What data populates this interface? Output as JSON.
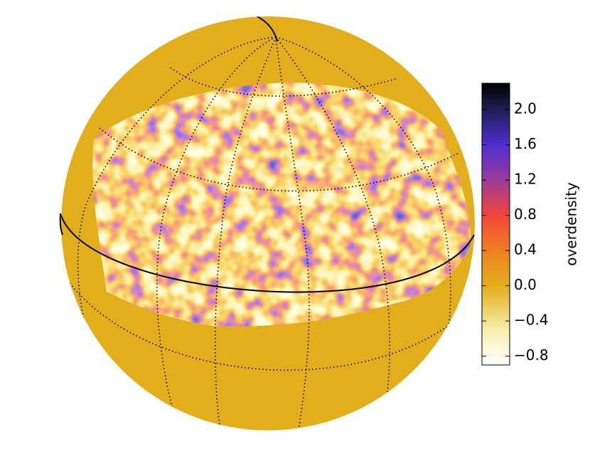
{
  "colorbar": {
    "label": "overdensity",
    "clim": [
      -0.9,
      2.3
    ],
    "ticks": [
      {
        "value": -0.8,
        "label": "−0.8"
      },
      {
        "value": -0.4,
        "label": "−0.4"
      },
      {
        "value": 0,
        "label": "0.0"
      },
      0.4,
      0.8,
      1.2,
      1.6,
      {
        "value": 2,
        "label": "2.0"
      }
    ]
  }
}
